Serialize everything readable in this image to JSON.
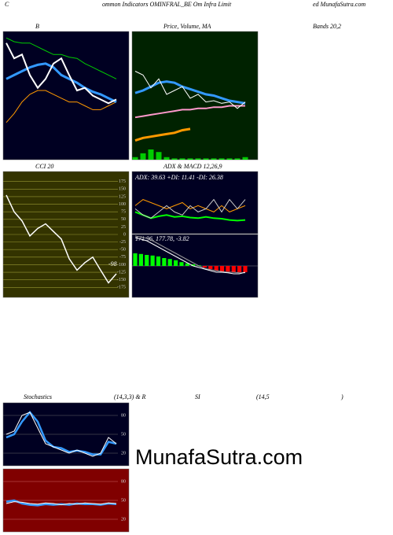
{
  "header": {
    "prefix": "C",
    "title": "ommon Indicators OMINFRAL_BE Om Infra Limit",
    "site": "ed MunafaSutra.com"
  },
  "watermark": "MunafaSutra.com",
  "chart_data": [
    {
      "type": "line",
      "titles": [
        "B",
        "Bands 20,2"
      ],
      "ylim": [
        0,
        100
      ],
      "series": [
        {
          "color": "#00cc00",
          "values": [
            95,
            92,
            91,
            91,
            88,
            85,
            82,
            82,
            80,
            79,
            75,
            72,
            69,
            66,
            63
          ]
        },
        {
          "color": "#ff9900",
          "values": [
            29,
            36,
            45,
            51,
            54,
            54,
            51,
            48,
            45,
            45,
            42,
            39,
            39,
            42,
            45
          ]
        },
        {
          "color": "#3399ff",
          "width": 3,
          "values": [
            63,
            66,
            69,
            72,
            74,
            75,
            72,
            66,
            63,
            60,
            56,
            53,
            51,
            48,
            45
          ]
        },
        {
          "color": "#ffffff",
          "width": 2,
          "values": [
            91,
            79,
            82,
            66,
            56,
            63,
            75,
            79,
            66,
            54,
            56,
            50,
            47,
            44,
            47
          ]
        }
      ]
    },
    {
      "type": "line",
      "titles": [
        "Price, Volume, MA"
      ],
      "ylim": [
        0,
        100
      ],
      "series": [
        {
          "type": "bar",
          "color": "#00cc00",
          "values": [
            2,
            5,
            8,
            6,
            2,
            1,
            1,
            1,
            1,
            1,
            1,
            1,
            1,
            1,
            2
          ]
        },
        {
          "color": "#ff9900",
          "width": 3,
          "values": [
            15,
            17,
            18,
            19,
            20,
            21,
            23,
            24,
            null,
            null,
            null,
            null,
            null,
            null,
            null
          ]
        },
        {
          "color": "#ff99cc",
          "width": 2,
          "values": [
            33,
            34,
            35,
            36,
            37,
            38,
            39,
            39,
            40,
            40,
            41,
            41,
            42,
            42,
            42
          ]
        },
        {
          "color": "#3399ff",
          "width": 3,
          "values": [
            52,
            54,
            57,
            60,
            61,
            60,
            57,
            55,
            53,
            51,
            50,
            48,
            46,
            45,
            44
          ]
        },
        {
          "color": "#ffffff",
          "width": 1,
          "values": [
            69,
            66,
            56,
            63,
            51,
            54,
            57,
            48,
            51,
            45,
            46,
            44,
            45,
            40,
            45
          ]
        }
      ]
    },
    {
      "type": "line",
      "titles": [
        "CCI 20"
      ],
      "annotation": "-98",
      "ylim": [
        -208,
        208
      ],
      "grid": true,
      "yticks": [
        175,
        150,
        125,
        100,
        75,
        50,
        25,
        0,
        -25,
        -50,
        -75,
        -100,
        -125,
        -150,
        -175
      ],
      "series": [
        {
          "color": "#ffffff",
          "width": 1.5,
          "values": [
            130,
            75,
            45,
            -5,
            20,
            35,
            10,
            -15,
            -80,
            -118,
            -93,
            -75,
            -118,
            -160,
            -130
          ]
        }
      ]
    },
    {
      "type": "line",
      "titles": [
        "ADX  & MACD 12,26,9",
        "ADX: 39.63  +DI: 11.41  -DI: 26.38"
      ],
      "ylim": [
        0,
        100
      ],
      "series": [
        {
          "color": "#ff9900",
          "values": [
            45,
            55,
            50,
            45,
            40,
            45,
            50,
            40,
            45,
            40,
            35,
            45,
            35,
            40,
            45
          ]
        },
        {
          "color": "#00ff00",
          "width": 2,
          "values": [
            35,
            30,
            25,
            28,
            30,
            27,
            28,
            26,
            25,
            27,
            25,
            24,
            22,
            21,
            22
          ]
        },
        {
          "color": "#cccccc",
          "values": [
            40,
            30,
            25,
            35,
            45,
            35,
            30,
            45,
            35,
            40,
            55,
            35,
            55,
            40,
            55
          ]
        }
      ]
    },
    {
      "type": "line",
      "titles": [
        "171.96,  177.78,  -3.82"
      ],
      "ylim": [
        -100,
        100
      ],
      "series": [
        {
          "type": "histogram",
          "color": "#00ff00",
          "negative_color": "#ff0000",
          "values": [
            40,
            38,
            35,
            33,
            30,
            25,
            22,
            18,
            12,
            8,
            5,
            2,
            -5,
            -10,
            -15,
            -18,
            -18,
            -20,
            -20,
            -20
          ]
        },
        {
          "color": "#999999",
          "values": [
            95,
            92,
            88,
            80,
            70,
            60,
            50,
            40,
            30,
            20,
            10,
            0,
            -8,
            -12,
            -15,
            -18,
            -20,
            -20,
            -22,
            -22
          ]
        },
        {
          "color": "#ffffff",
          "values": [
            90,
            85,
            80,
            70,
            60,
            50,
            40,
            30,
            20,
            10,
            0,
            -5,
            -10,
            -15,
            -20,
            -20,
            -22,
            -25,
            -25,
            -20
          ]
        }
      ]
    },
    {
      "type": "line",
      "titles": [
        "Stochastics",
        "(14,3,3) & R"
      ],
      "ylim": [
        0,
        100
      ],
      "grid": true,
      "yticks": [
        80,
        50,
        20
      ],
      "series": [
        {
          "color": "#3399ff",
          "width": 2.5,
          "values": [
            45,
            50,
            70,
            85,
            70,
            40,
            30,
            28,
            22,
            24,
            22,
            18,
            18,
            38,
            35
          ]
        },
        {
          "color": "#ffffff",
          "width": 1,
          "values": [
            50,
            55,
            80,
            85,
            60,
            35,
            30,
            25,
            20,
            25,
            20,
            15,
            20,
            45,
            35
          ]
        }
      ]
    },
    {
      "type": "line",
      "titles": [
        "SI",
        "(14,5",
        ")"
      ],
      "ylim": [
        0,
        100
      ],
      "grid": true,
      "yticks": [
        80,
        50,
        20
      ],
      "series": [
        {
          "color": "#3399ff",
          "width": 2.5,
          "values": [
            48,
            50,
            45,
            43,
            42,
            44,
            43,
            44,
            43,
            45,
            44,
            44,
            43,
            45,
            44
          ]
        },
        {
          "color": "#ffffff",
          "width": 1,
          "values": [
            45,
            48,
            47,
            45,
            44,
            46,
            45,
            43,
            45,
            44,
            46,
            45,
            44,
            46,
            45
          ]
        }
      ]
    }
  ]
}
